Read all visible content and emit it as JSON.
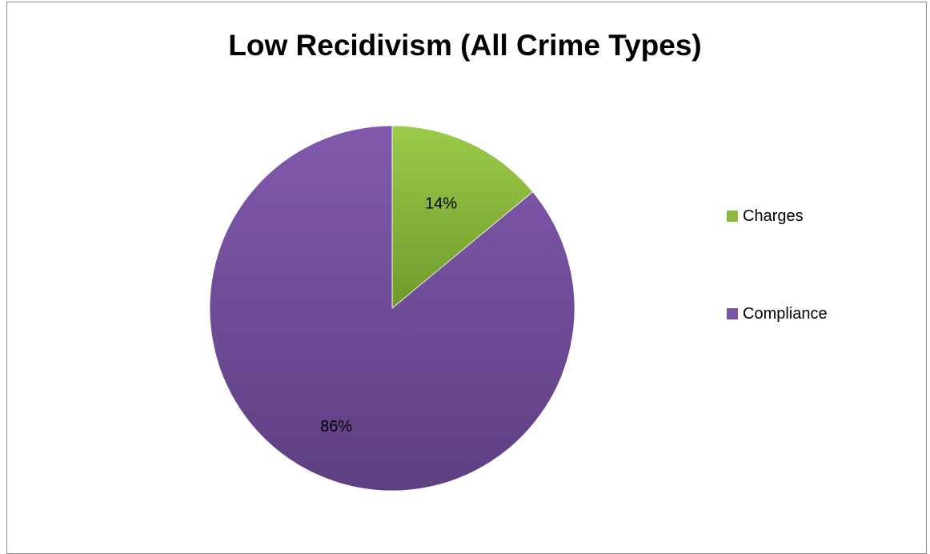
{
  "chart_data": {
    "type": "pie",
    "title": "Low Recidivism (All Crime Types)",
    "categories": [
      "Charges",
      "Compliance"
    ],
    "values": [
      14,
      86
    ],
    "data_labels": [
      "14%",
      "86%"
    ],
    "colors": [
      "#8cb83e",
      "#7a55a6"
    ],
    "legend_position": "right",
    "start_angle": "12 o'clock, clockwise"
  }
}
